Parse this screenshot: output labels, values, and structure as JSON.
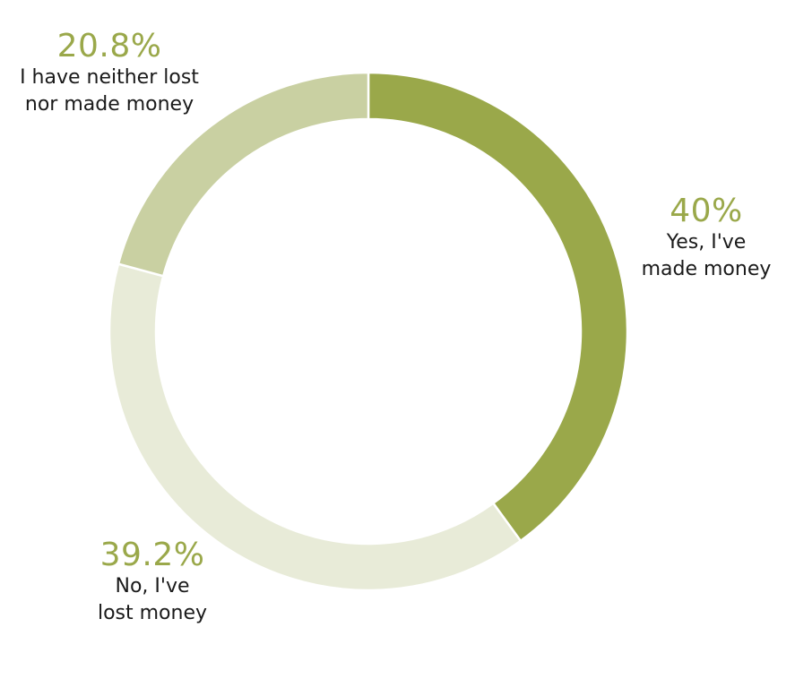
{
  "chart_data": {
    "type": "pie",
    "donut": true,
    "unit": "%",
    "slices": [
      {
        "value": 40,
        "pct_label": "40%",
        "label_lines": [
          "Yes, I've",
          "made money"
        ],
        "color": "#9aa84a"
      },
      {
        "value": 39.2,
        "pct_label": "39.2%",
        "label_lines": [
          "No, I've",
          "lost money"
        ],
        "color": "#e8ebd8"
      },
      {
        "value": 20.8,
        "pct_label": "20.8%",
        "label_lines": [
          "I have neither lost",
          "nor made money"
        ],
        "color": "#c9d0a2"
      }
    ]
  },
  "colors": {
    "accent_text": "#9aa84a",
    "separator": "#ffffff"
  }
}
